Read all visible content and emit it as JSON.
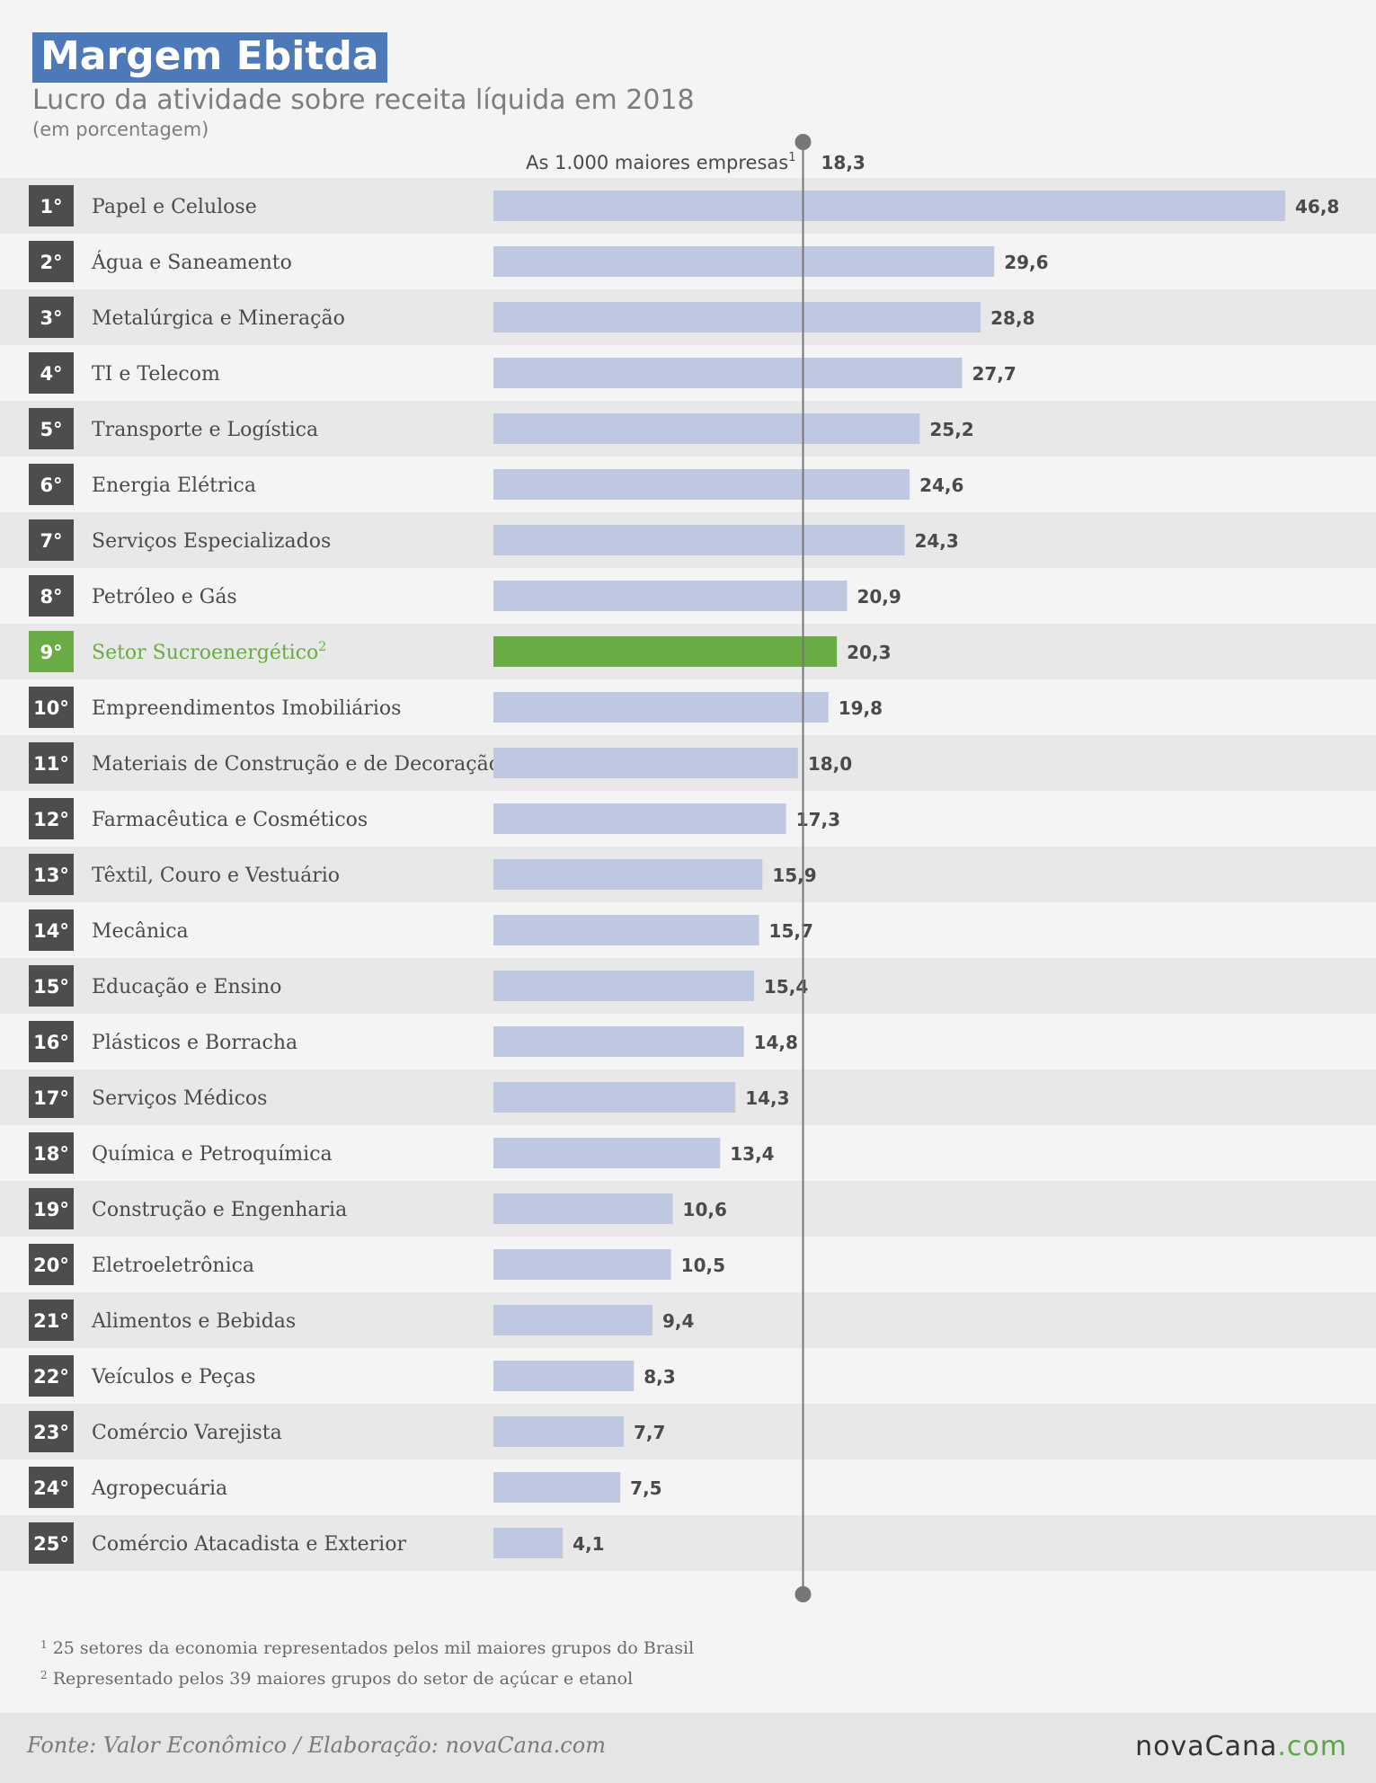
{
  "header": {
    "title": "Margem Ebitda",
    "subtitle": "Lucro da atividade sobre receita líquida em 2018",
    "unit": "(em porcentagem)"
  },
  "colors": {
    "bar": "#bfc8e1",
    "highlight": "#6aac44",
    "rank_box": "#4d4d4d",
    "title_bg": "#4e79b9",
    "row_band": "#e8e8e8",
    "reference_line": "#777777"
  },
  "chart_data": {
    "type": "bar",
    "orientation": "horizontal",
    "xlim": [
      0,
      46.8
    ],
    "reference": {
      "label": "As 1.000 maiores empresas",
      "footnote_mark": "1",
      "value": 18.3,
      "value_label": "18,3"
    },
    "highlight_category": "Setor Sucroenergético",
    "rows": [
      {
        "rank": "1°",
        "label": "Papel e Celulose",
        "value": 46.8,
        "value_label": "46,8"
      },
      {
        "rank": "2°",
        "label": "Água e Saneamento",
        "value": 29.6,
        "value_label": "29,6"
      },
      {
        "rank": "3°",
        "label": "Metalúrgica e Mineração",
        "value": 28.8,
        "value_label": "28,8"
      },
      {
        "rank": "4°",
        "label": "TI e Telecom",
        "value": 27.7,
        "value_label": "27,7"
      },
      {
        "rank": "5°",
        "label": "Transporte e Logística",
        "value": 25.2,
        "value_label": "25,2"
      },
      {
        "rank": "6°",
        "label": "Energia Elétrica",
        "value": 24.6,
        "value_label": "24,6"
      },
      {
        "rank": "7°",
        "label": "Serviços Especializados",
        "value": 24.3,
        "value_label": "24,3"
      },
      {
        "rank": "8°",
        "label": "Petróleo e Gás",
        "value": 20.9,
        "value_label": "20,9"
      },
      {
        "rank": "9°",
        "label": "Setor Sucroenergético",
        "footnote_mark": "2",
        "value": 20.3,
        "value_label": "20,3",
        "highlight": true
      },
      {
        "rank": "10°",
        "label": "Empreendimentos Imobiliários",
        "value": 19.8,
        "value_label": "19,8"
      },
      {
        "rank": "11°",
        "label": "Materiais de Construção e de Decoração",
        "value": 18.0,
        "value_label": "18,0"
      },
      {
        "rank": "12°",
        "label": "Farmacêutica e Cosméticos",
        "value": 17.3,
        "value_label": "17,3"
      },
      {
        "rank": "13°",
        "label": "Têxtil, Couro e Vestuário",
        "value": 15.9,
        "value_label": "15,9"
      },
      {
        "rank": "14°",
        "label": "Mecânica",
        "value": 15.7,
        "value_label": "15,7"
      },
      {
        "rank": "15°",
        "label": "Educação e Ensino",
        "value": 15.4,
        "value_label": "15,4"
      },
      {
        "rank": "16°",
        "label": "Plásticos e Borracha",
        "value": 14.8,
        "value_label": "14,8"
      },
      {
        "rank": "17°",
        "label": "Serviços Médicos",
        "value": 14.3,
        "value_label": "14,3"
      },
      {
        "rank": "18°",
        "label": "Química e Petroquímica",
        "value": 13.4,
        "value_label": "13,4"
      },
      {
        "rank": "19°",
        "label": "Construção e Engenharia",
        "value": 10.6,
        "value_label": "10,6"
      },
      {
        "rank": "20°",
        "label": "Eletroeletrônica",
        "value": 10.5,
        "value_label": "10,5"
      },
      {
        "rank": "21°",
        "label": "Alimentos e Bebidas",
        "value": 9.4,
        "value_label": "9,4"
      },
      {
        "rank": "22°",
        "label": "Veículos e Peças",
        "value": 8.3,
        "value_label": "8,3"
      },
      {
        "rank": "23°",
        "label": "Comércio Varejista",
        "value": 7.7,
        "value_label": "7,7"
      },
      {
        "rank": "24°",
        "label": "Agropecuária",
        "value": 7.5,
        "value_label": "7,5"
      },
      {
        "rank": "25°",
        "label": "Comércio Atacadista e Exterior",
        "value": 4.1,
        "value_label": "4,1"
      }
    ]
  },
  "footnotes": {
    "note1_mark": "1",
    "note1": "25 setores da economia representados pelos mil maiores grupos do Brasil",
    "note2_mark": "2",
    "note2": "Representado pelos 39 maiores grupos do setor de açúcar e etanol"
  },
  "footer": {
    "source": "Fonte: Valor Econômico / Elaboração: novaCana.com",
    "brand_main": "novaCana",
    "brand_dot": ".com"
  }
}
